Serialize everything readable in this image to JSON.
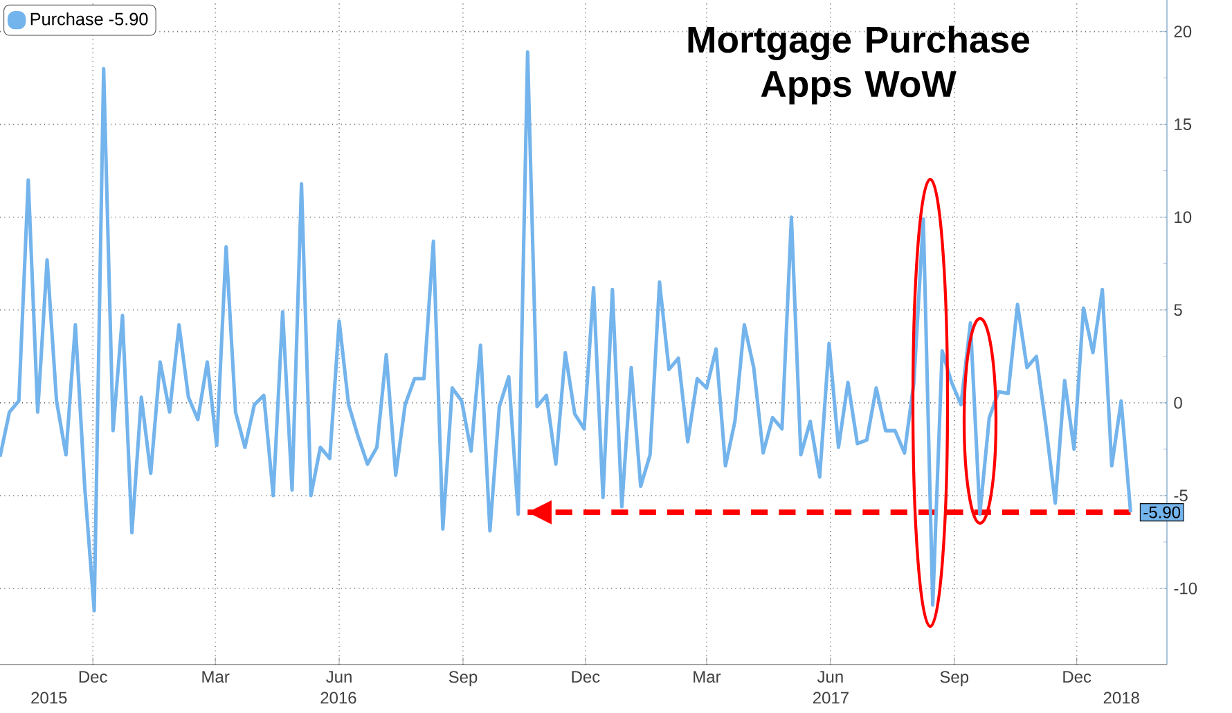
{
  "chart_data": {
    "type": "line",
    "title": "Mortgage Purchase Apps WoW",
    "x": [
      "2015-09-23",
      "2015-09-30",
      "2015-10-07",
      "2015-10-14",
      "2015-10-21",
      "2015-10-28",
      "2015-11-04",
      "2015-11-11",
      "2015-11-18",
      "2015-11-25",
      "2015-12-02",
      "2015-12-09",
      "2015-12-16",
      "2015-12-23",
      "2015-12-30",
      "2016-01-06",
      "2016-01-13",
      "2016-01-20",
      "2016-01-27",
      "2016-02-03",
      "2016-02-10",
      "2016-02-17",
      "2016-02-24",
      "2016-03-02",
      "2016-03-09",
      "2016-03-16",
      "2016-03-23",
      "2016-03-30",
      "2016-04-06",
      "2016-04-13",
      "2016-04-20",
      "2016-04-27",
      "2016-05-04",
      "2016-05-11",
      "2016-05-18",
      "2016-05-25",
      "2016-06-01",
      "2016-06-08",
      "2016-06-15",
      "2016-06-22",
      "2016-06-29",
      "2016-07-06",
      "2016-07-13",
      "2016-07-20",
      "2016-07-27",
      "2016-08-03",
      "2016-08-10",
      "2016-08-17",
      "2016-08-24",
      "2016-08-31",
      "2016-09-07",
      "2016-09-14",
      "2016-09-21",
      "2016-09-28",
      "2016-10-05",
      "2016-10-12",
      "2016-10-19",
      "2016-10-26",
      "2016-11-02",
      "2016-11-09",
      "2016-11-16",
      "2016-11-23",
      "2016-11-30",
      "2016-12-07",
      "2016-12-14",
      "2016-12-21",
      "2016-12-28",
      "2017-01-04",
      "2017-01-11",
      "2017-01-18",
      "2017-01-25",
      "2017-02-01",
      "2017-02-08",
      "2017-02-15",
      "2017-02-22",
      "2017-03-01",
      "2017-03-08",
      "2017-03-15",
      "2017-03-22",
      "2017-03-29",
      "2017-04-05",
      "2017-04-12",
      "2017-04-19",
      "2017-04-26",
      "2017-05-03",
      "2017-05-10",
      "2017-05-17",
      "2017-05-24",
      "2017-05-31",
      "2017-06-07",
      "2017-06-14",
      "2017-06-21",
      "2017-06-28",
      "2017-07-05",
      "2017-07-12",
      "2017-07-19",
      "2017-07-26",
      "2017-08-02",
      "2017-08-09",
      "2017-08-16",
      "2017-08-23",
      "2017-08-30",
      "2017-09-06",
      "2017-09-13",
      "2017-09-20",
      "2017-09-27",
      "2017-10-04",
      "2017-10-11",
      "2017-10-18",
      "2017-10-25",
      "2017-11-01",
      "2017-11-08",
      "2017-11-15",
      "2017-11-22",
      "2017-11-29",
      "2017-12-06",
      "2017-12-13",
      "2017-12-20",
      "2017-12-27",
      "2018-01-03",
      "2018-01-10"
    ],
    "series": [
      {
        "name": "Purchase -5.90",
        "color": "#74b4ec",
        "values": [
          -2.9,
          -0.5,
          0.1,
          12.0,
          -0.5,
          7.7,
          0.1,
          -2.8,
          4.2,
          -4.6,
          -11.2,
          18.0,
          -1.5,
          4.7,
          -7.0,
          0.3,
          -3.8,
          2.2,
          -0.5,
          4.2,
          0.3,
          -0.9,
          2.2,
          -2.3,
          8.4,
          -0.5,
          -2.4,
          -0.1,
          0.4,
          -5.0,
          4.9,
          -4.7,
          11.8,
          -5.0,
          -2.4,
          -3.0,
          4.4,
          -0.1,
          -1.8,
          -3.3,
          -2.4,
          2.6,
          -3.9,
          -0.1,
          1.3,
          1.3,
          8.7,
          -6.8,
          0.8,
          0.1,
          -2.6,
          3.1,
          -6.9,
          -0.2,
          1.4,
          -6.0,
          18.9,
          -0.2,
          0.4,
          -3.3,
          2.7,
          -0.6,
          -1.4,
          6.2,
          -5.1,
          6.1,
          -5.6,
          1.9,
          -4.5,
          -2.8,
          6.5,
          1.8,
          2.4,
          -2.1,
          1.3,
          0.8,
          2.9,
          -3.4,
          -1.0,
          4.2,
          1.9,
          -2.7,
          -0.8,
          -1.4,
          10.0,
          -2.8,
          -1.0,
          -4.0,
          3.2,
          -2.4,
          1.1,
          -2.2,
          -2.0,
          0.8,
          -1.5,
          -1.5,
          -2.7,
          1.1,
          9.9,
          -10.9,
          2.8,
          1.1,
          -0.1,
          4.3,
          -6.0,
          -0.8,
          0.6,
          0.5,
          5.3,
          1.9,
          2.5,
          -1.2,
          -5.4,
          1.2,
          -2.5,
          5.1,
          2.7,
          6.1,
          -3.4,
          0.1,
          -5.9
        ],
        "value_labels": [
          null,
          null,
          null,
          null,
          null,
          null,
          null,
          null,
          null,
          null,
          null,
          null,
          null,
          null,
          null,
          null,
          null,
          null,
          null,
          null,
          null,
          null,
          null,
          null,
          null,
          null,
          null,
          null,
          null,
          null,
          null,
          null,
          null,
          null,
          null,
          null,
          null,
          null,
          null,
          null,
          null,
          null,
          null,
          null,
          null,
          null,
          null,
          null,
          null,
          null,
          null,
          null,
          null,
          null,
          null,
          null,
          null,
          null,
          null,
          null,
          null,
          null,
          null,
          null,
          null,
          null,
          null,
          null,
          null,
          null,
          null,
          null,
          null,
          null,
          null,
          null,
          null,
          null,
          null,
          null,
          null,
          null,
          null,
          null,
          null,
          null,
          null,
          null,
          null,
          null,
          null,
          null,
          null,
          null,
          null,
          null,
          null,
          null,
          null,
          null,
          null,
          null,
          null,
          null,
          null,
          null,
          null,
          null,
          null,
          null,
          null,
          null,
          null,
          null,
          null,
          null,
          null,
          null,
          null,
          null,
          "-5.90"
        ]
      },
      {
        "type": "line",
        "color": "#ff0000",
        "line_style": "dashed",
        "x": [
          "2016-10-19",
          "2018-01-10"
        ],
        "values": [
          -5.9,
          -5.9
        ]
      }
    ],
    "xlim": [
      "2015-09-23",
      "2018-02-06"
    ],
    "xticks": [
      {
        "value": "2015-12-01",
        "label": "Dec"
      },
      {
        "value": "2016-03-01",
        "label": "Mar"
      },
      {
        "value": "2016-06-01",
        "label": "Jun"
      },
      {
        "value": "2016-09-01",
        "label": "Sep"
      },
      {
        "value": "2016-12-01",
        "label": "Dec"
      },
      {
        "value": "2017-03-01",
        "label": "Mar"
      },
      {
        "value": "2017-06-01",
        "label": "Jun"
      },
      {
        "value": "2017-09-01",
        "label": "Sep"
      },
      {
        "value": "2017-12-01",
        "label": "Dec"
      }
    ],
    "ylim": [
      -14.1,
      21.7
    ],
    "yticks": [
      -10,
      -5,
      0,
      5,
      10,
      15,
      20
    ],
    "grid": true,
    "legend": "top left",
    "annotations": [
      "2015",
      "2016",
      "2017",
      "2018"
    ]
  }
}
